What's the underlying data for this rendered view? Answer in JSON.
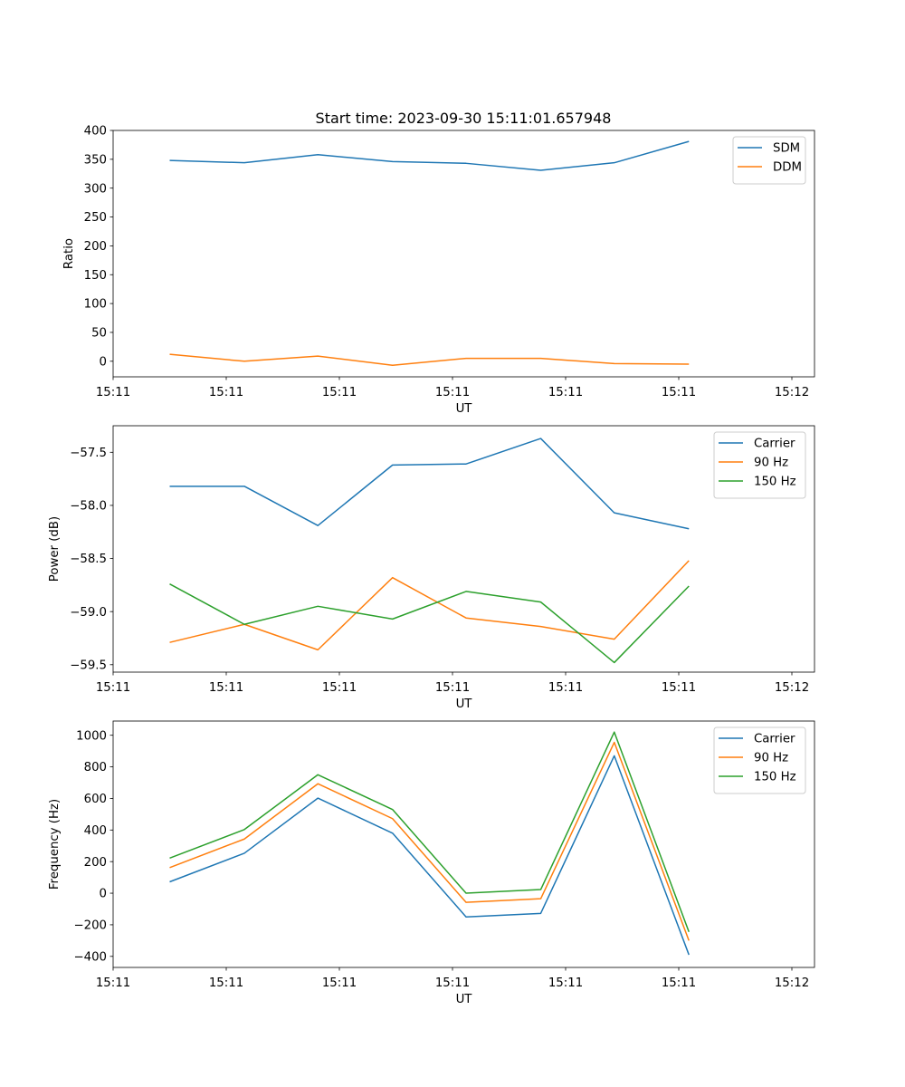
{
  "title": "Start time: 2023-09-30 15:11:01.657948",
  "chart_data": [
    {
      "type": "line",
      "xlabel": "UT",
      "ylabel": "Ratio",
      "xlim": [
        0,
        6.2
      ],
      "ylim": [
        -27,
        400
      ],
      "xticks": [
        0.0,
        1.0,
        2.0,
        3.0,
        4.0,
        5.0,
        6.0
      ],
      "xtick_labels": [
        "15:11",
        "15:11",
        "15:11",
        "15:11",
        "15:11",
        "15:11",
        "15:12"
      ],
      "yticks": [
        0,
        50,
        100,
        150,
        200,
        250,
        300,
        350,
        400
      ],
      "ytick_labels": [
        "0",
        "50",
        "100",
        "150",
        "200",
        "250",
        "300",
        "350",
        "400"
      ],
      "x": [
        0.5,
        1.16,
        1.81,
        2.47,
        3.12,
        3.78,
        4.43,
        5.09
      ],
      "legend_position": "upper-right",
      "grid": false,
      "series": [
        {
          "name": "SDM",
          "color": "#1f77b4",
          "values": [
            348,
            344,
            358,
            346,
            343,
            331,
            344,
            381
          ]
        },
        {
          "name": "DDM",
          "color": "#ff7f0e",
          "values": [
            12,
            0,
            9,
            -7,
            5,
            5,
            -4,
            -5
          ]
        }
      ]
    },
    {
      "type": "line",
      "xlabel": "UT",
      "ylabel": "Power (dB)",
      "xlim": [
        0,
        6.2
      ],
      "ylim": [
        -59.57,
        -57.25
      ],
      "xticks": [
        0.0,
        1.0,
        2.0,
        3.0,
        4.0,
        5.0,
        6.0
      ],
      "xtick_labels": [
        "15:11",
        "15:11",
        "15:11",
        "15:11",
        "15:11",
        "15:11",
        "15:12"
      ],
      "yticks": [
        -59.5,
        -59.0,
        -58.5,
        -58.0,
        -57.5
      ],
      "ytick_labels": [
        "−59.5",
        "−59.0",
        "−58.5",
        "−58.0",
        "−57.5"
      ],
      "x": [
        0.5,
        1.16,
        1.81,
        2.47,
        3.12,
        3.78,
        4.43,
        5.09
      ],
      "legend_position": "upper-right",
      "grid": false,
      "series": [
        {
          "name": "Carrier",
          "color": "#1f77b4",
          "values": [
            -57.82,
            -57.82,
            -58.19,
            -57.62,
            -57.61,
            -57.37,
            -58.07,
            -58.22
          ]
        },
        {
          "name": "90 Hz",
          "color": "#ff7f0e",
          "values": [
            -59.29,
            -59.12,
            -59.36,
            -58.68,
            -59.06,
            -59.14,
            -59.26,
            -58.52
          ]
        },
        {
          "name": "150 Hz",
          "color": "#2ca02c",
          "values": [
            -58.74,
            -59.12,
            -58.95,
            -59.07,
            -58.81,
            -58.91,
            -59.48,
            -58.76
          ]
        }
      ]
    },
    {
      "type": "line",
      "xlabel": "UT",
      "ylabel": "Frequency (Hz)",
      "xlim": [
        0,
        6.2
      ],
      "ylim": [
        -470,
        1090
      ],
      "xticks": [
        0.0,
        1.0,
        2.0,
        3.0,
        4.0,
        5.0,
        6.0
      ],
      "xtick_labels": [
        "15:11",
        "15:11",
        "15:11",
        "15:11",
        "15:11",
        "15:11",
        "15:12"
      ],
      "yticks": [
        -400,
        -200,
        0,
        200,
        400,
        600,
        800,
        1000
      ],
      "ytick_labels": [
        "−400",
        "−200",
        "0",
        "200",
        "400",
        "600",
        "800",
        "1000"
      ],
      "x": [
        0.5,
        1.16,
        1.81,
        2.47,
        3.12,
        3.78,
        4.43,
        5.09
      ],
      "legend_position": "upper-right",
      "grid": false,
      "series": [
        {
          "name": "Carrier",
          "color": "#1f77b4",
          "values": [
            72,
            253,
            602,
            380,
            -150,
            -128,
            870,
            -390
          ]
        },
        {
          "name": "90 Hz",
          "color": "#ff7f0e",
          "values": [
            162,
            343,
            693,
            472,
            -58,
            -35,
            955,
            -300
          ]
        },
        {
          "name": "150 Hz",
          "color": "#2ca02c",
          "values": [
            222,
            403,
            750,
            530,
            0,
            23,
            1020,
            -245
          ]
        }
      ]
    }
  ]
}
